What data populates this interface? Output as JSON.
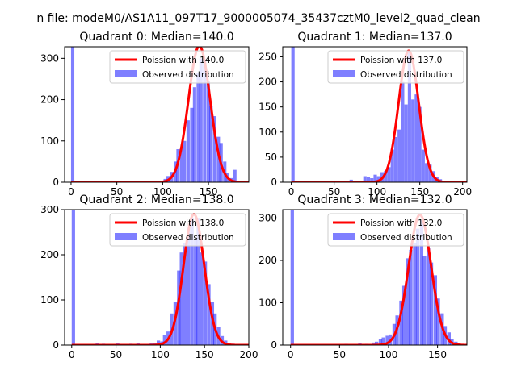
{
  "figure": {
    "suptitle": "n file: modeM0/AS1A11_097T17_9000005074_35437cztM0_level2_quad_clean"
  },
  "colors": {
    "hist": "#0000ff",
    "hist_opacity": 0.5,
    "poisson": "#ff0000",
    "axis": "#000000",
    "background": "#ffffff"
  },
  "chart_data": [
    {
      "type": "bar",
      "title": "Quadrant 0: Median=140.0",
      "xlabel": "",
      "ylabel": "",
      "xlim": [
        -7,
        194
      ],
      "ylim": [
        0,
        328
      ],
      "xticks": [
        0,
        50,
        100,
        150
      ],
      "yticks": [
        0,
        100,
        200,
        300
      ],
      "legend_position": "top-right",
      "poisson": {
        "name": "Poission with 140.0",
        "mu": 140,
        "peak": 330
      },
      "histogram": {
        "name": "Observed distribution",
        "bin_width": 3.6,
        "bins": [
          [
            0,
            330
          ],
          [
            83,
            2
          ],
          [
            94,
            3
          ],
          [
            101,
            8
          ],
          [
            104,
            15
          ],
          [
            108,
            25
          ],
          [
            112,
            50
          ],
          [
            115,
            80
          ],
          [
            119,
            85
          ],
          [
            122,
            100
          ],
          [
            126,
            150
          ],
          [
            130,
            180
          ],
          [
            133,
            230
          ],
          [
            137,
            265
          ],
          [
            140,
            300
          ],
          [
            144,
            295
          ],
          [
            148,
            245
          ],
          [
            151,
            185
          ],
          [
            155,
            160
          ],
          [
            159,
            110
          ],
          [
            162,
            95
          ],
          [
            166,
            50
          ],
          [
            169,
            22
          ],
          [
            173,
            10
          ],
          [
            177,
            30
          ]
        ]
      }
    },
    {
      "type": "bar",
      "title": "Quadrant 1: Median=137.0",
      "xlabel": "",
      "ylabel": "",
      "xlim": [
        -10,
        205
      ],
      "ylim": [
        0,
        270
      ],
      "xticks": [
        0,
        50,
        100,
        150,
        200
      ],
      "yticks": [
        0,
        50,
        100,
        150,
        200,
        250
      ],
      "legend_position": "top-right",
      "poisson": {
        "name": "Poission with 137.0",
        "mu": 137,
        "peak": 262
      },
      "histogram": {
        "name": "Observed distribution",
        "bin_width": 3.9,
        "bins": [
          [
            0,
            270
          ],
          [
            64,
            3
          ],
          [
            68,
            5
          ],
          [
            72,
            2
          ],
          [
            76,
            2
          ],
          [
            80,
            3
          ],
          [
            84,
            12
          ],
          [
            88,
            10
          ],
          [
            92,
            8
          ],
          [
            96,
            15
          ],
          [
            100,
            12
          ],
          [
            104,
            20
          ],
          [
            108,
            22
          ],
          [
            112,
            30
          ],
          [
            116,
            65
          ],
          [
            120,
            90
          ],
          [
            124,
            105
          ],
          [
            128,
            200
          ],
          [
            132,
            155
          ],
          [
            136,
            260
          ],
          [
            140,
            165
          ],
          [
            144,
            175
          ],
          [
            148,
            150
          ],
          [
            152,
            65
          ],
          [
            156,
            38
          ],
          [
            160,
            35
          ],
          [
            164,
            22
          ],
          [
            168,
            10
          ],
          [
            172,
            6
          ],
          [
            176,
            3
          ],
          [
            180,
            2
          ]
        ]
      }
    },
    {
      "type": "bar",
      "title": "Quadrant 2: Median=138.0",
      "xlabel": "",
      "ylabel": "",
      "xlim": [
        -8,
        200
      ],
      "ylim": [
        0,
        300
      ],
      "xticks": [
        0,
        50,
        100,
        150,
        200
      ],
      "yticks": [
        0,
        100,
        200,
        300
      ],
      "legend_position": "top-right",
      "poisson": {
        "name": "Poission with 138.0",
        "mu": 138,
        "peak": 290
      },
      "histogram": {
        "name": "Observed distribution",
        "bin_width": 3.8,
        "bins": [
          [
            0,
            300
          ],
          [
            23,
            2
          ],
          [
            27,
            4
          ],
          [
            34,
            3
          ],
          [
            42,
            2
          ],
          [
            50,
            5
          ],
          [
            57,
            2
          ],
          [
            65,
            3
          ],
          [
            73,
            5
          ],
          [
            80,
            2
          ],
          [
            88,
            4
          ],
          [
            92,
            5
          ],
          [
            96,
            10
          ],
          [
            100,
            8
          ],
          [
            103,
            22
          ],
          [
            107,
            30
          ],
          [
            111,
            70
          ],
          [
            115,
            95
          ],
          [
            119,
            165
          ],
          [
            122,
            205
          ],
          [
            126,
            225
          ],
          [
            130,
            260
          ],
          [
            134,
            282
          ],
          [
            138,
            235
          ],
          [
            141,
            280
          ],
          [
            145,
            205
          ],
          [
            149,
            185
          ],
          [
            153,
            135
          ],
          [
            157,
            95
          ],
          [
            160,
            70
          ],
          [
            164,
            40
          ],
          [
            168,
            20
          ],
          [
            172,
            10
          ],
          [
            176,
            5
          ],
          [
            180,
            3
          ],
          [
            184,
            2
          ],
          [
            188,
            2
          ]
        ]
      }
    },
    {
      "type": "bar",
      "title": "Quadrant 3: Median=132.0",
      "xlabel": "",
      "ylabel": "",
      "xlim": [
        -8,
        180
      ],
      "ylim": [
        0,
        320
      ],
      "xticks": [
        0,
        50,
        100,
        150
      ],
      "yticks": [
        0,
        100,
        200,
        300
      ],
      "legend_position": "top-right",
      "poisson": {
        "name": "Poission with 132.0",
        "mu": 132,
        "peak": 308
      },
      "histogram": {
        "name": "Observed distribution",
        "bin_width": 3.5,
        "bins": [
          [
            0,
            320
          ],
          [
            55,
            3
          ],
          [
            62,
            2
          ],
          [
            69,
            4
          ],
          [
            76,
            3
          ],
          [
            83,
            6
          ],
          [
            86,
            8
          ],
          [
            90,
            15
          ],
          [
            93,
            18
          ],
          [
            97,
            22
          ],
          [
            100,
            25
          ],
          [
            104,
            50
          ],
          [
            107,
            70
          ],
          [
            111,
            105
          ],
          [
            114,
            140
          ],
          [
            118,
            205
          ],
          [
            121,
            225
          ],
          [
            125,
            240
          ],
          [
            128,
            275
          ],
          [
            132,
            295
          ],
          [
            135,
            210
          ],
          [
            139,
            230
          ],
          [
            142,
            195
          ],
          [
            146,
            165
          ],
          [
            149,
            110
          ],
          [
            153,
            75
          ],
          [
            156,
            45
          ],
          [
            160,
            30
          ],
          [
            163,
            15
          ],
          [
            167,
            8
          ],
          [
            170,
            4
          ],
          [
            174,
            2
          ]
        ]
      }
    }
  ]
}
